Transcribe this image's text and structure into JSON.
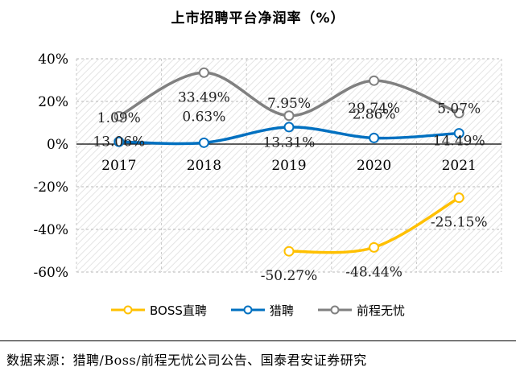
{
  "title": "上市招聘平台净润率（%）",
  "source": "数据来源：猎聘/Boss/前程无忧公司公告、国泰君安证券研究",
  "chart_data": {
    "type": "line",
    "title": "上市招聘平台净润率（%）",
    "categories": [
      "2017",
      "2018",
      "2019",
      "2020",
      "2021"
    ],
    "ylim": [
      -60,
      40
    ],
    "yticks": [
      "40%",
      "20%",
      "0%",
      "-20%",
      "-40%",
      "-60%"
    ],
    "ytick_values": [
      40,
      20,
      0,
      -20,
      -40,
      -60
    ],
    "grid": true,
    "legend_position": "bottom",
    "series": [
      {
        "name": "BOSS直聘",
        "color": "#FFC000",
        "values": [
          null,
          null,
          -50.27,
          -48.44,
          -25.15
        ],
        "labels": [
          null,
          null,
          "-50.27%",
          "-48.44%",
          "-25.15%"
        ]
      },
      {
        "name": "猎聘",
        "color": "#0070C0",
        "values": [
          1.09,
          0.63,
          7.95,
          2.86,
          5.07
        ],
        "labels": [
          "1.09%",
          "0.63%",
          "7.95%",
          "2.86%",
          "5.07%"
        ]
      },
      {
        "name": "前程无忧",
        "color": "#808080",
        "values": [
          13.06,
          33.49,
          13.31,
          29.74,
          14.49
        ],
        "labels": [
          "13.06%",
          "33.49%",
          "13.31%",
          "29.74%",
          "14.49%"
        ]
      }
    ]
  }
}
